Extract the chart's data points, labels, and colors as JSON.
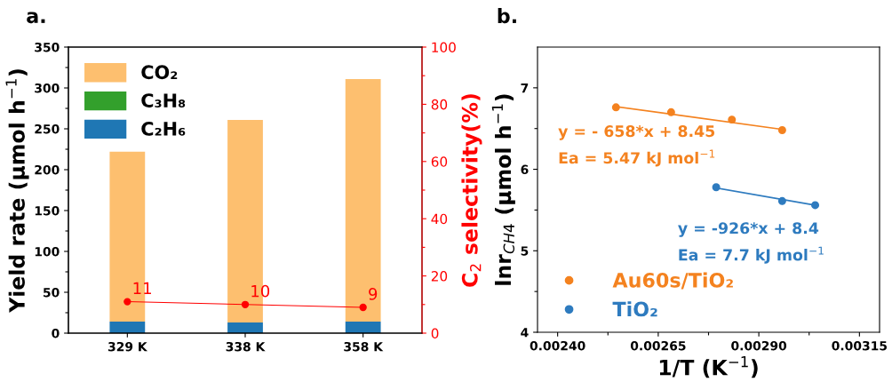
{
  "chart_data": [
    {
      "type": "bar",
      "title": "a.",
      "ylabel": "Yield rate (μmol h$^{−1}$)",
      "y2label": "C$_{2}$ selectivity(%)",
      "categories": [
        "329 K",
        "338 K",
        "358 K"
      ],
      "stacked": true,
      "legend": "top left",
      "grid": false,
      "ylim": [
        0,
        350
      ],
      "yticks": [
        0,
        {
          "value": 25,
          "label": null
        },
        50,
        {
          "value": 75,
          "label": null
        },
        100,
        {
          "value": 125,
          "label": null
        },
        150,
        {
          "value": 175,
          "label": null
        },
        200,
        {
          "value": 225,
          "label": null
        },
        250,
        {
          "value": 275,
          "label": null
        },
        300,
        {
          "value": 325,
          "label": null
        },
        350
      ],
      "y2lim": [
        0,
        100
      ],
      "y2ticks": [
        0,
        {
          "value": 10,
          "label": null
        },
        20,
        {
          "value": 30,
          "label": null
        },
        40,
        {
          "value": 50,
          "label": null
        },
        60,
        {
          "value": 70,
          "label": null
        },
        80,
        {
          "value": 90,
          "label": null
        },
        100
      ],
      "series": [
        {
          "name": "C₂H₆",
          "color": "#1f77b4",
          "values": [
            14,
            13,
            14
          ]
        },
        {
          "name": "C₃H₈",
          "color": "#33a02c",
          "values": [
            0,
            0,
            0
          ]
        },
        {
          "name": "CO₂",
          "color": "#fdbf6f",
          "values": [
            208,
            248,
            297
          ]
        },
        {
          "type": "line",
          "axis": "y2",
          "color": "#ff0000",
          "marker": "circle",
          "values": [
            11,
            10,
            9
          ],
          "value_labels": [
            "11",
            "10",
            "9"
          ]
        }
      ]
    },
    {
      "type": "scatter",
      "title": "b.",
      "xlabel": "1/T (K$^{−1}$)",
      "ylabel": "lnr$_{CH4}$ (μmol h$^{−1}$)",
      "legend": "bottom left",
      "grid": false,
      "marker": "circle",
      "xlim": [
        0.00235,
        0.0032
      ],
      "xticks": [
        {
          "value": 0.0024,
          "label": "0.00240"
        },
        {
          "value": 0.002525,
          "label": null
        },
        {
          "value": 0.00265,
          "label": "0.00265"
        },
        {
          "value": 0.002775,
          "label": null
        },
        {
          "value": 0.0029,
          "label": "0.00290"
        },
        {
          "value": 0.003025,
          "label": null
        },
        {
          "value": 0.00315,
          "label": "0.00315"
        }
      ],
      "ylim": [
        4,
        7.5
      ],
      "yticks": [
        4,
        {
          "value": 4.5,
          "label": null
        },
        5,
        {
          "value": 5.5,
          "label": null
        },
        6,
        {
          "value": 6.5,
          "label": null
        },
        7
      ],
      "annotations": [
        "y = - 658*x + 8.45",
        "Ea = 5.47 kJ mol$^{−1}$",
        "y = -926*x + 8.4",
        "Ea = 7.7 kJ mol$^{−1}$"
      ],
      "series": [
        {
          "name": "Au60s/TiO₂",
          "color": "#f4821f",
          "x": [
            0.002545,
            0.002682,
            0.002833,
            0.002958
          ],
          "values": [
            6.76,
            6.7,
            6.61,
            6.48
          ]
        },
        {
          "name": "TiO₂",
          "color": "#2e7bbf",
          "x": [
            0.002794,
            0.002958,
            0.00304
          ],
          "values": [
            5.78,
            5.61,
            5.56
          ]
        },
        {
          "type": "line",
          "color": "#f4821f",
          "marker": "none",
          "x": [
            0.002545,
            0.002958
          ],
          "values": [
            6.77,
            6.49
          ]
        },
        {
          "type": "line",
          "color": "#2e7bbf",
          "marker": "none",
          "x": [
            0.002794,
            0.00304
          ],
          "values": [
            5.77,
            5.56
          ]
        }
      ]
    }
  ]
}
